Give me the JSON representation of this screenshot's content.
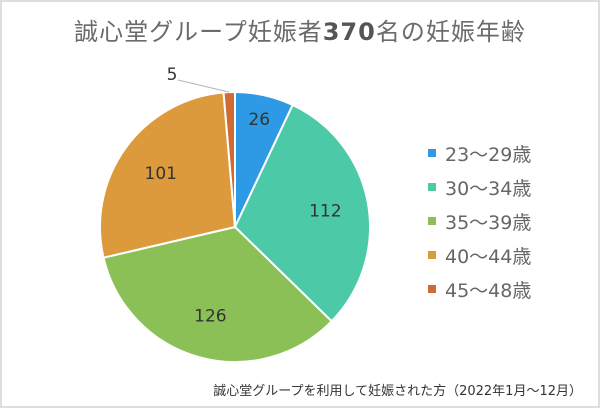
{
  "chart_data": {
    "type": "pie",
    "title": "誠心堂グループ妊娠者370名の妊娠年齢",
    "total": 370,
    "categories": [
      "23～29歳",
      "30～34歳",
      "35～39歳",
      "40～44歳",
      "45～48歳"
    ],
    "values": [
      26,
      112,
      126,
      101,
      5
    ],
    "colors": [
      "#2e9ae6",
      "#4ccaa8",
      "#8bc057",
      "#dd9a3d",
      "#d06b34"
    ],
    "start_angle": "12 o'clock, clockwise",
    "legend_position": "right",
    "footnote": "誠心堂グループを利用して妊娠された方（2022年1月～12月）"
  },
  "title": {
    "prefix": "誠心堂グループ妊娠者",
    "number": "370",
    "suffix": "名の妊娠年齢"
  },
  "legend": [
    {
      "label": "23～29歳",
      "color": "#2e9ae6"
    },
    {
      "label": "30～34歳",
      "color": "#4ccaa8"
    },
    {
      "label": "35～39歳",
      "color": "#8bc057"
    },
    {
      "label": "40～44歳",
      "color": "#dd9a3d"
    },
    {
      "label": "45～48歳",
      "color": "#d06b34"
    }
  ],
  "footnote": "誠心堂グループを利用して妊娠された方（2022年1月～12月）"
}
